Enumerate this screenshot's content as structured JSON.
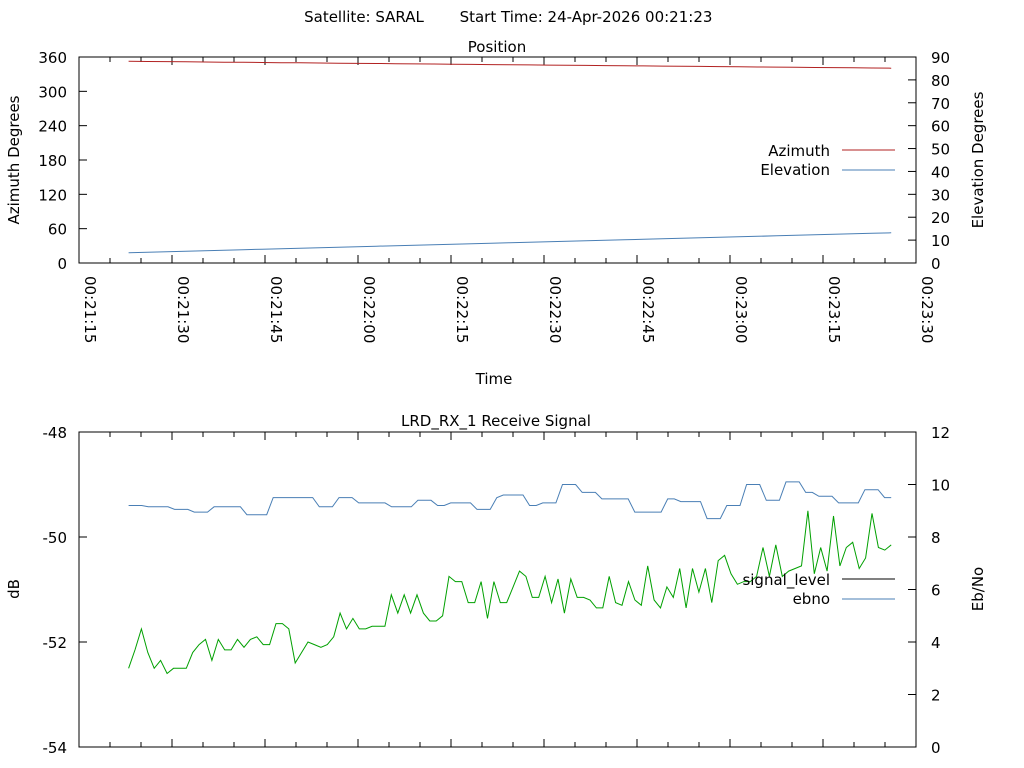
{
  "header": {
    "satellite": "Satellite: SARAL",
    "start_time": "Start Time: 24-Apr-2026 00:21:23"
  },
  "colors": {
    "azimuth": "#b22222",
    "elevation": "#4a7fb5",
    "signal_level": "#000000",
    "ebno": "#4a7fb5",
    "green_trace": "#00a000"
  },
  "chart_data": [
    {
      "type": "line",
      "title": "Position",
      "xlabel": "Time",
      "ylabel": "Azimuth Degrees",
      "y2label": "Elevation Degrees",
      "xlim_seconds": [
        1275,
        1410
      ],
      "x_ticks": [
        "00:21:15",
        "00:21:30",
        "00:21:45",
        "00:22:00",
        "00:22:15",
        "00:22:30",
        "00:22:45",
        "00:23:00",
        "00:23:15",
        "00:23:30"
      ],
      "ylim": [
        0,
        360
      ],
      "y_ticks": [
        "0",
        "60",
        "120",
        "180",
        "240",
        "300",
        "360"
      ],
      "y2lim": [
        0,
        90
      ],
      "y2_ticks": [
        "0",
        "10",
        "20",
        "30",
        "40",
        "50",
        "60",
        "70",
        "80",
        "90"
      ],
      "grid": false,
      "legend": "right",
      "series": [
        {
          "name": "Azimuth",
          "axis": "left",
          "time_start_s": 1283,
          "time_end_s": 1406,
          "start": 352.5,
          "end": 340.5
        },
        {
          "name": "Elevation",
          "axis": "right",
          "time_start_s": 1283,
          "time_end_s": 1406,
          "start": 4.5,
          "end": 13.2
        }
      ]
    },
    {
      "type": "line",
      "title": "LRD_RX_1 Receive Signal",
      "ylabel": "dB",
      "y2label": "Eb/No",
      "xlim_seconds": [
        1275,
        1410
      ],
      "ylim": [
        -54,
        -48
      ],
      "y_ticks": [
        "-54",
        "-52",
        "-50",
        "-48"
      ],
      "y2lim": [
        0,
        12
      ],
      "y2_ticks": [
        "0",
        "2",
        "4",
        "6",
        "8",
        "10",
        "12"
      ],
      "grid": false,
      "legend": "right",
      "series": [
        {
          "name": "signal_level",
          "axis": "left",
          "values": []
        },
        {
          "name": "ebno",
          "axis": "right",
          "values": [
            9.2,
            9.2,
            9.2,
            9.15,
            9.15,
            9.15,
            9.15,
            9.05,
            9.05,
            9.05,
            8.95,
            8.95,
            8.95,
            9.15,
            9.15,
            9.15,
            9.15,
            9.15,
            8.85,
            8.85,
            8.85,
            8.85,
            9.5,
            9.5,
            9.5,
            9.5,
            9.5,
            9.5,
            9.5,
            9.15,
            9.15,
            9.15,
            9.5,
            9.5,
            9.5,
            9.3,
            9.3,
            9.3,
            9.3,
            9.3,
            9.15,
            9.15,
            9.15,
            9.15,
            9.4,
            9.4,
            9.4,
            9.2,
            9.2,
            9.3,
            9.3,
            9.3,
            9.3,
            9.05,
            9.05,
            9.05,
            9.5,
            9.6,
            9.6,
            9.6,
            9.6,
            9.2,
            9.2,
            9.3,
            9.3,
            9.3,
            10.0,
            10.0,
            10.0,
            9.7,
            9.7,
            9.7,
            9.45,
            9.45,
            9.45,
            9.45,
            9.45,
            8.95,
            8.95,
            8.95,
            8.95,
            8.95,
            9.45,
            9.45,
            9.35,
            9.35,
            9.35,
            9.35,
            8.7,
            8.7,
            8.7,
            9.2,
            9.2,
            9.2,
            10.0,
            10.0,
            10.0,
            9.4,
            9.4,
            9.4,
            10.1,
            10.1,
            10.1,
            9.7,
            9.7,
            9.55,
            9.55,
            9.55,
            9.3,
            9.3,
            9.3,
            9.3,
            9.8,
            9.8,
            9.8,
            9.5,
            9.5
          ]
        },
        {
          "name": "",
          "axis": "right",
          "values": [
            3.0,
            3.7,
            4.5,
            3.6,
            3.0,
            3.3,
            2.8,
            3.0,
            3.0,
            3.0,
            3.6,
            3.9,
            4.1,
            3.3,
            4.1,
            3.7,
            3.7,
            4.1,
            3.8,
            4.1,
            4.2,
            3.9,
            3.9,
            4.7,
            4.7,
            4.5,
            3.2,
            3.6,
            4.0,
            3.9,
            3.8,
            3.9,
            4.2,
            5.1,
            4.5,
            4.9,
            4.5,
            4.5,
            4.6,
            4.6,
            4.6,
            5.8,
            5.1,
            5.8,
            5.1,
            5.8,
            5.1,
            4.8,
            4.8,
            5.0,
            6.5,
            6.3,
            6.3,
            5.5,
            5.5,
            6.3,
            4.9,
            6.3,
            5.5,
            5.5,
            6.1,
            6.7,
            6.5,
            5.7,
            5.7,
            6.5,
            5.5,
            6.4,
            5.1,
            6.4,
            5.7,
            5.7,
            5.6,
            5.3,
            5.3,
            6.5,
            5.5,
            5.4,
            6.3,
            5.6,
            5.4,
            6.9,
            5.6,
            5.3,
            6.1,
            5.7,
            6.8,
            5.3,
            6.8,
            5.9,
            6.8,
            5.5,
            7.1,
            7.3,
            6.6,
            6.2,
            6.3,
            6.3,
            6.5,
            7.6,
            6.5,
            7.7,
            6.5,
            6.7,
            6.8,
            6.9,
            9.0,
            6.6,
            7.6,
            6.7,
            8.8,
            6.9,
            7.6,
            7.8,
            6.8,
            7.2,
            8.9,
            7.6,
            7.5,
            7.7
          ]
        }
      ]
    }
  ]
}
